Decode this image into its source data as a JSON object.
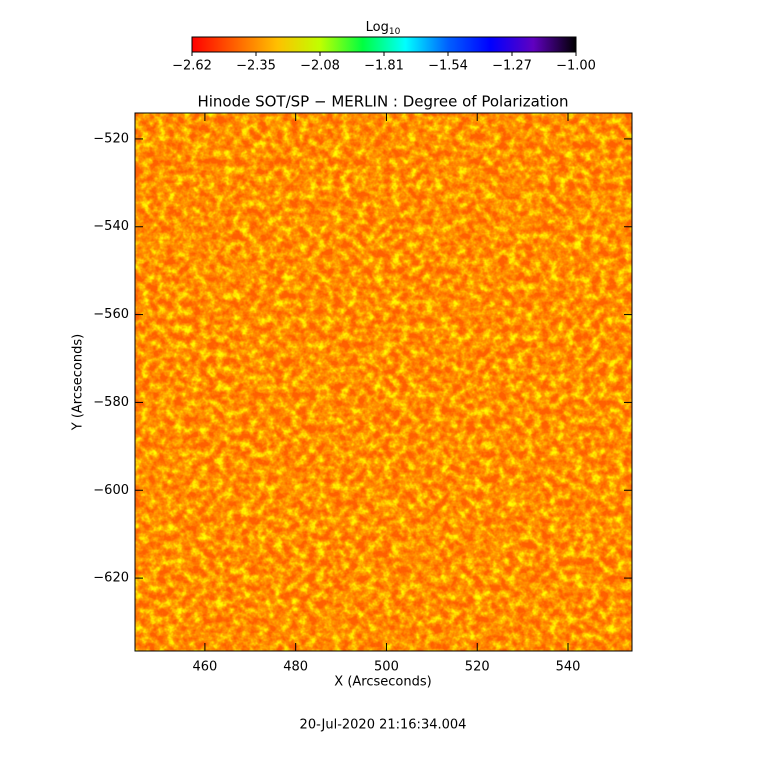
{
  "chart_data": {
    "type": "image",
    "title": "Hinode SOT/SP − MERLIN : Degree of Polarization",
    "x_label": "X (Arcseconds)",
    "y_label": "Y (Arcseconds)",
    "footer": "20-Jul-2020 21:16:34.004",
    "xlim": [
      444.6,
      554.1
    ],
    "ylim": [
      -636.6,
      -514.1
    ],
    "xticks": [
      460,
      480,
      500,
      520,
      540
    ],
    "yticks": [
      {
        "value": -520,
        "label": "−520"
      },
      {
        "value": -540,
        "label": "−540"
      },
      {
        "value": -560,
        "label": "−560"
      },
      {
        "value": -580,
        "label": "−580"
      },
      {
        "value": -600,
        "label": "−600"
      },
      {
        "value": -620,
        "label": "−620"
      }
    ],
    "colorbar": {
      "label_base": "Log",
      "label_sub": "10",
      "clim": [
        -2.62,
        -1.0
      ],
      "ticks": [
        {
          "value": -2.62,
          "label": "−2.62"
        },
        {
          "value": -2.35,
          "label": "−2.35"
        },
        {
          "value": -2.08,
          "label": "−2.08"
        },
        {
          "value": -1.81,
          "label": "−1.81"
        },
        {
          "value": -1.54,
          "label": "−1.54"
        },
        {
          "value": -1.27,
          "label": "−1.27"
        },
        {
          "value": -1.0,
          "label": "−1.00"
        }
      ],
      "colormap": [
        "#ff0000",
        "#ff6000",
        "#ffc000",
        "#c0ff00",
        "#00ff40",
        "#00ffff",
        "#0060ff",
        "#0000ff",
        "#6000c0",
        "#000000"
      ]
    }
  }
}
